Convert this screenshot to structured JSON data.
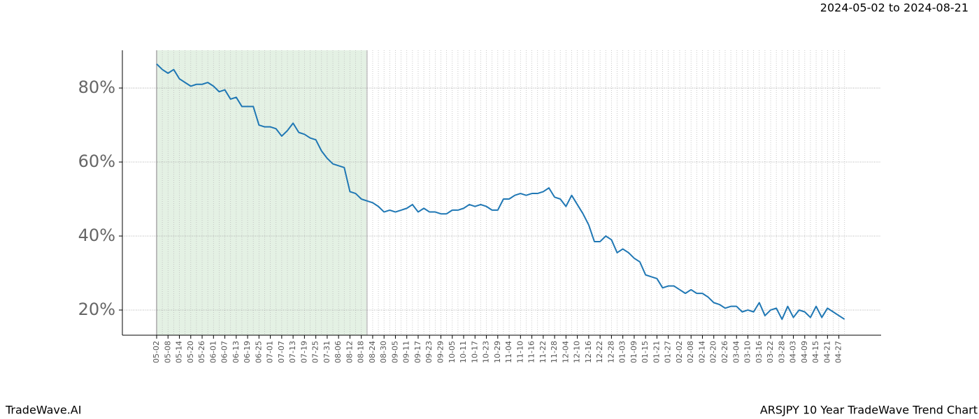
{
  "chart_data": {
    "type": "line",
    "subtitle": "2024-05-02 to 2024-08-21",
    "footer_left": "TradeWave.AI",
    "footer_right": "ARSJPY 10 Year TradeWave Trend Chart",
    "categories": [
      "05-02",
      null,
      "05-08",
      null,
      "05-14",
      null,
      "05-20",
      null,
      "05-26",
      null,
      "06-01",
      null,
      "06-07",
      null,
      "06-13",
      null,
      "06-19",
      null,
      "06-25",
      null,
      "07-01",
      null,
      "07-07",
      null,
      "07-13",
      null,
      "07-19",
      null,
      "07-25",
      null,
      "07-31",
      null,
      "08-06",
      null,
      "08-12",
      null,
      "08-18",
      null,
      "08-24",
      null,
      "08-30",
      null,
      "09-05",
      null,
      "09-11",
      null,
      "09-17",
      null,
      "09-23",
      null,
      "09-29",
      null,
      "10-05",
      null,
      "10-11",
      null,
      "10-17",
      null,
      "10-23",
      null,
      "10-29",
      null,
      "11-04",
      null,
      "11-10",
      null,
      "11-16",
      null,
      "11-22",
      null,
      "11-28",
      null,
      "12-04",
      null,
      "12-10",
      null,
      "12-16",
      null,
      "12-22",
      null,
      "12-28",
      null,
      "01-03",
      null,
      "01-09",
      null,
      "01-15",
      null,
      "01-21",
      null,
      "01-27",
      null,
      "02-02",
      null,
      "02-08",
      null,
      "02-14",
      null,
      "02-20",
      null,
      "02-26",
      null,
      "03-04",
      null,
      "03-10",
      null,
      "03-16",
      null,
      "03-22",
      null,
      "03-28",
      null,
      "04-03",
      null,
      "04-09",
      null,
      "04-15",
      null,
      "04-21",
      null,
      "04-27",
      null
    ],
    "values": [
      86.5,
      85,
      84,
      85,
      82.5,
      81.5,
      80.5,
      81,
      81,
      81.5,
      80.5,
      79,
      79.5,
      77,
      77.5,
      75,
      75,
      75,
      70,
      69.5,
      69.5,
      69,
      67,
      68.5,
      70.5,
      68,
      67.5,
      66.5,
      66,
      63,
      61,
      59.5,
      59,
      58.5,
      52,
      51.5,
      50,
      49.5,
      49,
      48,
      46.5,
      47,
      46.5,
      47,
      47.5,
      48.5,
      46.5,
      47.5,
      46.5,
      46.5,
      46,
      46,
      47,
      47,
      47.5,
      48.5,
      48,
      48.5,
      48,
      47,
      47,
      50,
      50,
      51,
      51.5,
      51,
      51.5,
      51.5,
      52,
      53,
      50.5,
      50,
      48,
      51,
      48.5,
      46,
      43,
      38.5,
      38.5,
      40,
      39,
      35.5,
      36.5,
      35.5,
      34,
      33,
      29.5,
      29,
      28.5,
      26,
      26.5,
      26.5,
      25.5,
      24.5,
      25.5,
      24.5,
      24.5,
      23.5,
      22,
      21.5,
      20.5,
      21,
      21,
      19.5,
      20,
      19.5,
      22,
      18.5,
      20,
      20.5,
      17.5,
      21,
      18,
      20,
      19.5,
      18,
      21,
      18,
      20.5,
      19.5,
      18.5,
      17.5
    ],
    "color": "#1f77b4",
    "ylim": [
      13.2,
      90.2
    ],
    "yticks": [
      {
        "value": 20,
        "label": "20%"
      },
      {
        "value": 40,
        "label": "40%"
      },
      {
        "value": 60,
        "label": "60%"
      },
      {
        "value": 80,
        "label": "80%"
      }
    ],
    "grid": true
  }
}
